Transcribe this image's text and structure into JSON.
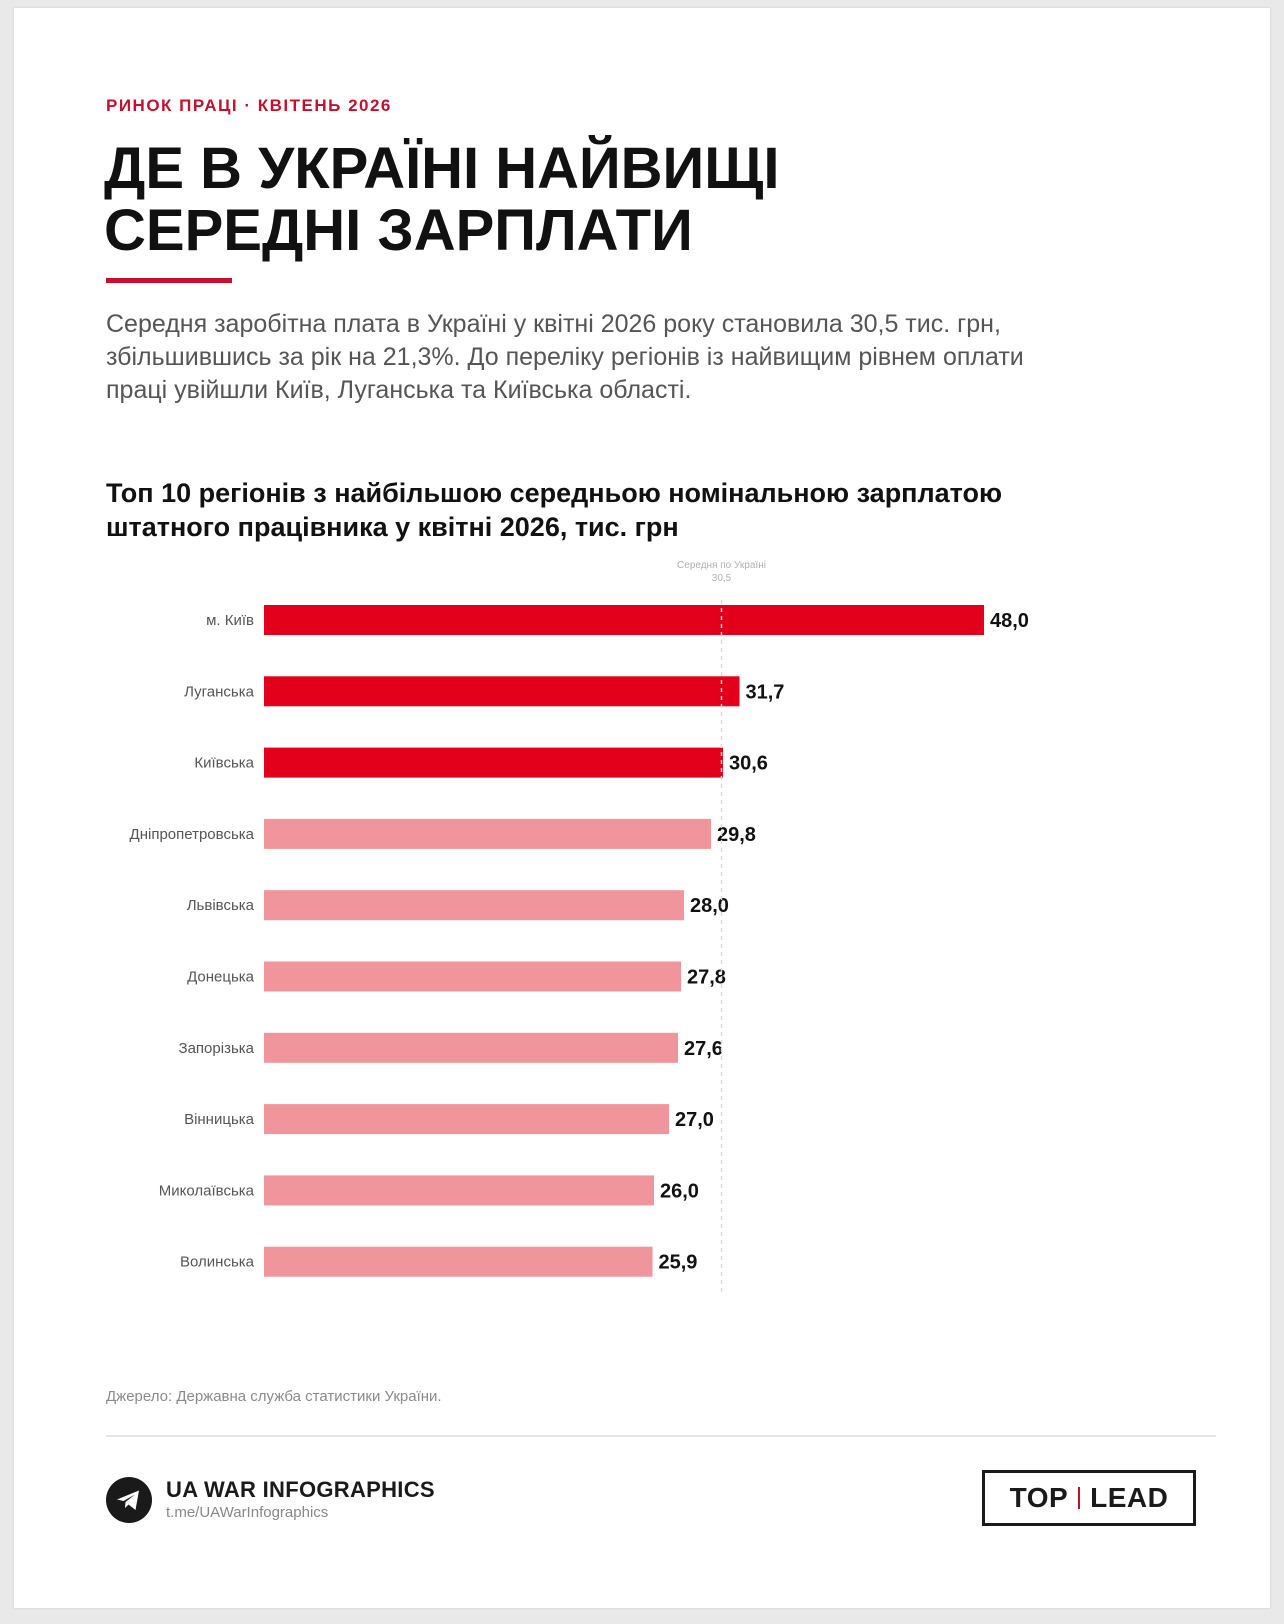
{
  "header": {
    "kicker": "РИНОК ПРАЦІ · КВІТЕНЬ 2026",
    "title_line1": "ДЕ В УКРАЇНІ НАЙВИЩІ",
    "title_line2": "СЕРЕДНІ ЗАРПЛАТИ",
    "lead": "Середня заробітна плата в Україні у квітні 2026 року становила 30,5 тис. грн, збільшившись за рік на 21,3%. До переліку регіонів із найвищим рівнем оплати праці увійшли Київ, Луганська та Київська області."
  },
  "chart_title_line1": "Топ 10 регіонів з найбільшою середньою номінальною зарплатою",
  "chart_title_line2": "штатного працівника у квітні 2026, тис. грн",
  "chart_data": {
    "type": "bar",
    "orientation": "horizontal",
    "categories": [
      "м. Київ",
      "Луганська",
      "Київська",
      "Дніпропетровська",
      "Львівська",
      "Донецька",
      "Запорізька",
      "Вінницька",
      "Миколаївська",
      "Волинська"
    ],
    "values": [
      48.0,
      31.7,
      30.6,
      29.8,
      28.0,
      27.8,
      27.6,
      27.0,
      26.0,
      25.9
    ],
    "value_labels": [
      "48,0",
      "31,7",
      "30,6",
      "29,8",
      "28,0",
      "27,8",
      "27,6",
      "27,0",
      "26,0",
      "25,9"
    ],
    "highlight_count": 3,
    "reference_line": {
      "label": "Середня по Україні",
      "value": 30.5,
      "value_label": "30,5"
    },
    "xlim": [
      0,
      48
    ],
    "grid": false,
    "colors": {
      "highlight": "#e2001a",
      "normal": "#f0959b",
      "reference": "#d9d9d9"
    }
  },
  "footer": {
    "source": "Джерело: Державна служба статистики України.",
    "brand_icon": "telegram-icon",
    "brand_name": "UA WAR INFOGRAPHICS",
    "brand_link": "t.me/UAWarInfographics",
    "partner_left": "TOP",
    "partner_right": "LEAD"
  }
}
